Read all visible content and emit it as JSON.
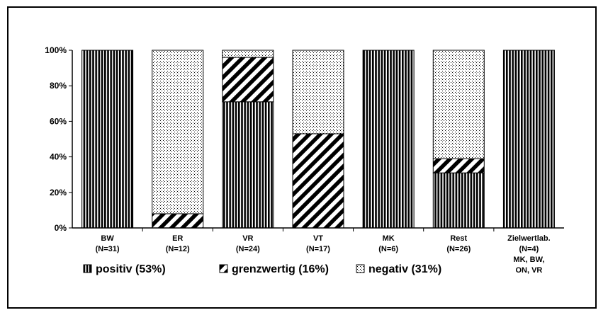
{
  "chart_data": {
    "type": "bar",
    "stacked": true,
    "categories": [
      "BW",
      "ER",
      "VR",
      "VT",
      "MK",
      "Rest",
      "Zielwertlab."
    ],
    "category_counts": [
      "(N=31)",
      "(N=12)",
      "(N=24)",
      "(N=17)",
      "(N=6)",
      "(N=26)",
      "(N=4)"
    ],
    "category_extra": [
      "",
      "",
      "",
      "",
      "",
      "",
      "MK, BW,\nON, VR"
    ],
    "series": [
      {
        "name": "positiv (53%)",
        "pattern": "vertical-stripes",
        "values": [
          100,
          0,
          71,
          0,
          100,
          31,
          100
        ]
      },
      {
        "name": "grenzwertig (16%)",
        "pattern": "diagonal-stripes",
        "values": [
          0,
          8,
          25,
          53,
          0,
          8,
          0
        ]
      },
      {
        "name": "negativ (31%)",
        "pattern": "dotted",
        "values": [
          0,
          92,
          4,
          47,
          0,
          61,
          0
        ]
      }
    ],
    "ylim": [
      0,
      100
    ],
    "yticks": [
      "0%",
      "20%",
      "40%",
      "60%",
      "80%",
      "100%"
    ],
    "grid": false,
    "legend_position": "bottom",
    "colors": {
      "ink": "#000000",
      "background": "#ffffff"
    }
  }
}
